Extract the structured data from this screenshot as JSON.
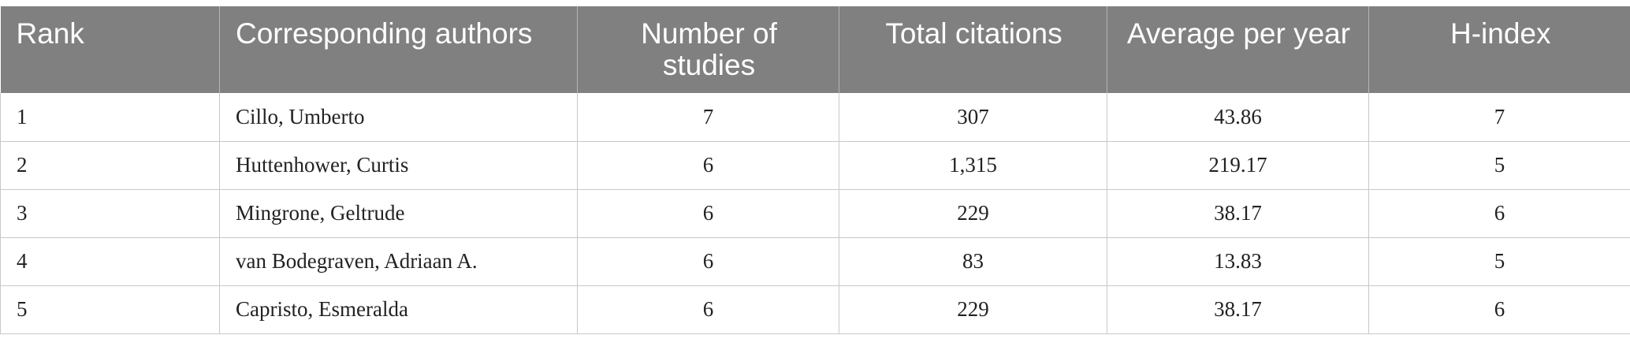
{
  "table": {
    "headers": [
      "Rank",
      "Corresponding authors",
      "Number of studies",
      "Total citations",
      "Average per year",
      "H-index"
    ],
    "rows": [
      [
        "1",
        "Cillo, Umberto",
        "7",
        "307",
        "43.86",
        "7"
      ],
      [
        "2",
        "Huttenhower, Curtis",
        "6",
        "1,315",
        "219.17",
        "5"
      ],
      [
        "3",
        "Mingrone, Geltrude",
        "6",
        "229",
        "38.17",
        "6"
      ],
      [
        "4",
        "van Bodegraven, Adriaan A.",
        "6",
        "83",
        "13.83",
        "5"
      ],
      [
        "5",
        "Capristo, Esmeralda",
        "6",
        "229",
        "38.17",
        "6"
      ]
    ]
  },
  "colors": {
    "header_background": "#808080",
    "header_text": "#ffffff",
    "border": "#c8c8c8"
  }
}
